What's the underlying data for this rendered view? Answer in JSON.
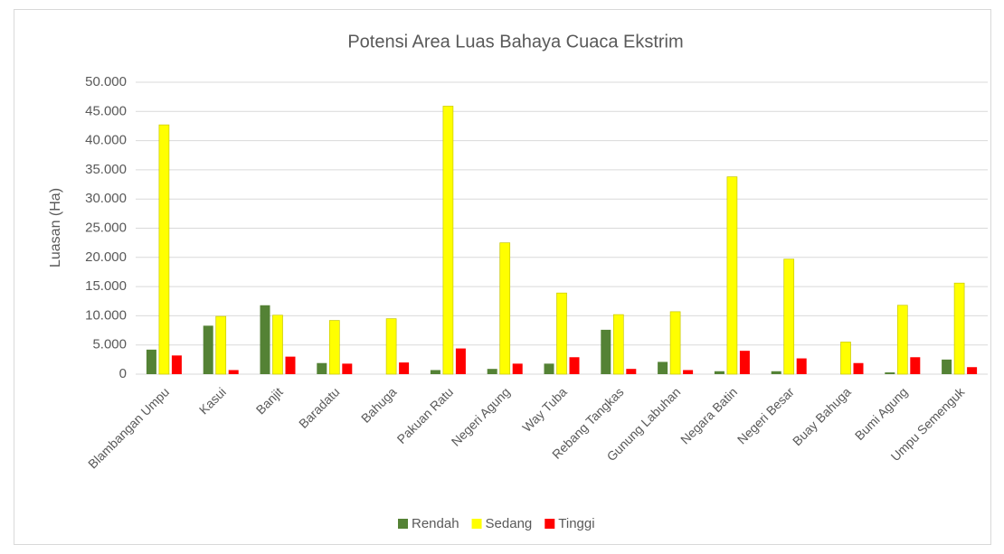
{
  "chart_data": {
    "type": "bar",
    "title": "Potensi Area Luas Bahaya Cuaca Ekstrim",
    "y_label": "Luasan (Ha)",
    "categories": [
      "Blambangan Umpu",
      "Kasui",
      "Banjit",
      "Baradatu",
      "Bahuga",
      "Pakuan Ratu",
      "Negeri Agung",
      "Way Tuba",
      "Rebang Tangkas",
      "Gunung Labuhan",
      "Negara Batin",
      "Negeri Besar",
      "Buay Bahuga",
      "Bumi Agung",
      "Umpu Semenguk"
    ],
    "series": [
      {
        "name": "Rendah",
        "color": "#548235",
        "values": [
          4200,
          8300,
          11800,
          1900,
          0,
          700,
          900,
          1800,
          7600,
          2100,
          500,
          500,
          0,
          300,
          2500
        ]
      },
      {
        "name": "Sedang",
        "color": "#ffff00",
        "values": [
          42700,
          9900,
          10100,
          9200,
          9500,
          45900,
          22500,
          13900,
          10200,
          10700,
          33800,
          19700,
          5500,
          11800,
          15600
        ]
      },
      {
        "name": "Tinggi",
        "color": "#ff0000",
        "values": [
          3200,
          700,
          3000,
          1800,
          2000,
          4400,
          1800,
          2900,
          900,
          700,
          4000,
          2700,
          1900,
          2900,
          1200
        ]
      }
    ],
    "ylim": [
      0,
      50000
    ],
    "yticks": [
      0,
      {
        "value": 5000,
        "label": "5.000"
      },
      {
        "value": 10000,
        "label": "10.000"
      },
      {
        "value": 15000,
        "label": "15.000"
      },
      {
        "value": 20000,
        "label": "20.000"
      },
      {
        "value": 25000,
        "label": "25.000"
      },
      {
        "value": 30000,
        "label": "30.000"
      },
      {
        "value": 35000,
        "label": "35.000"
      },
      {
        "value": 40000,
        "label": "40.000"
      },
      {
        "value": 45000,
        "label": "45.000"
      },
      {
        "value": 50000,
        "label": "50.000"
      }
    ],
    "grid": true,
    "legend": "bottom"
  }
}
